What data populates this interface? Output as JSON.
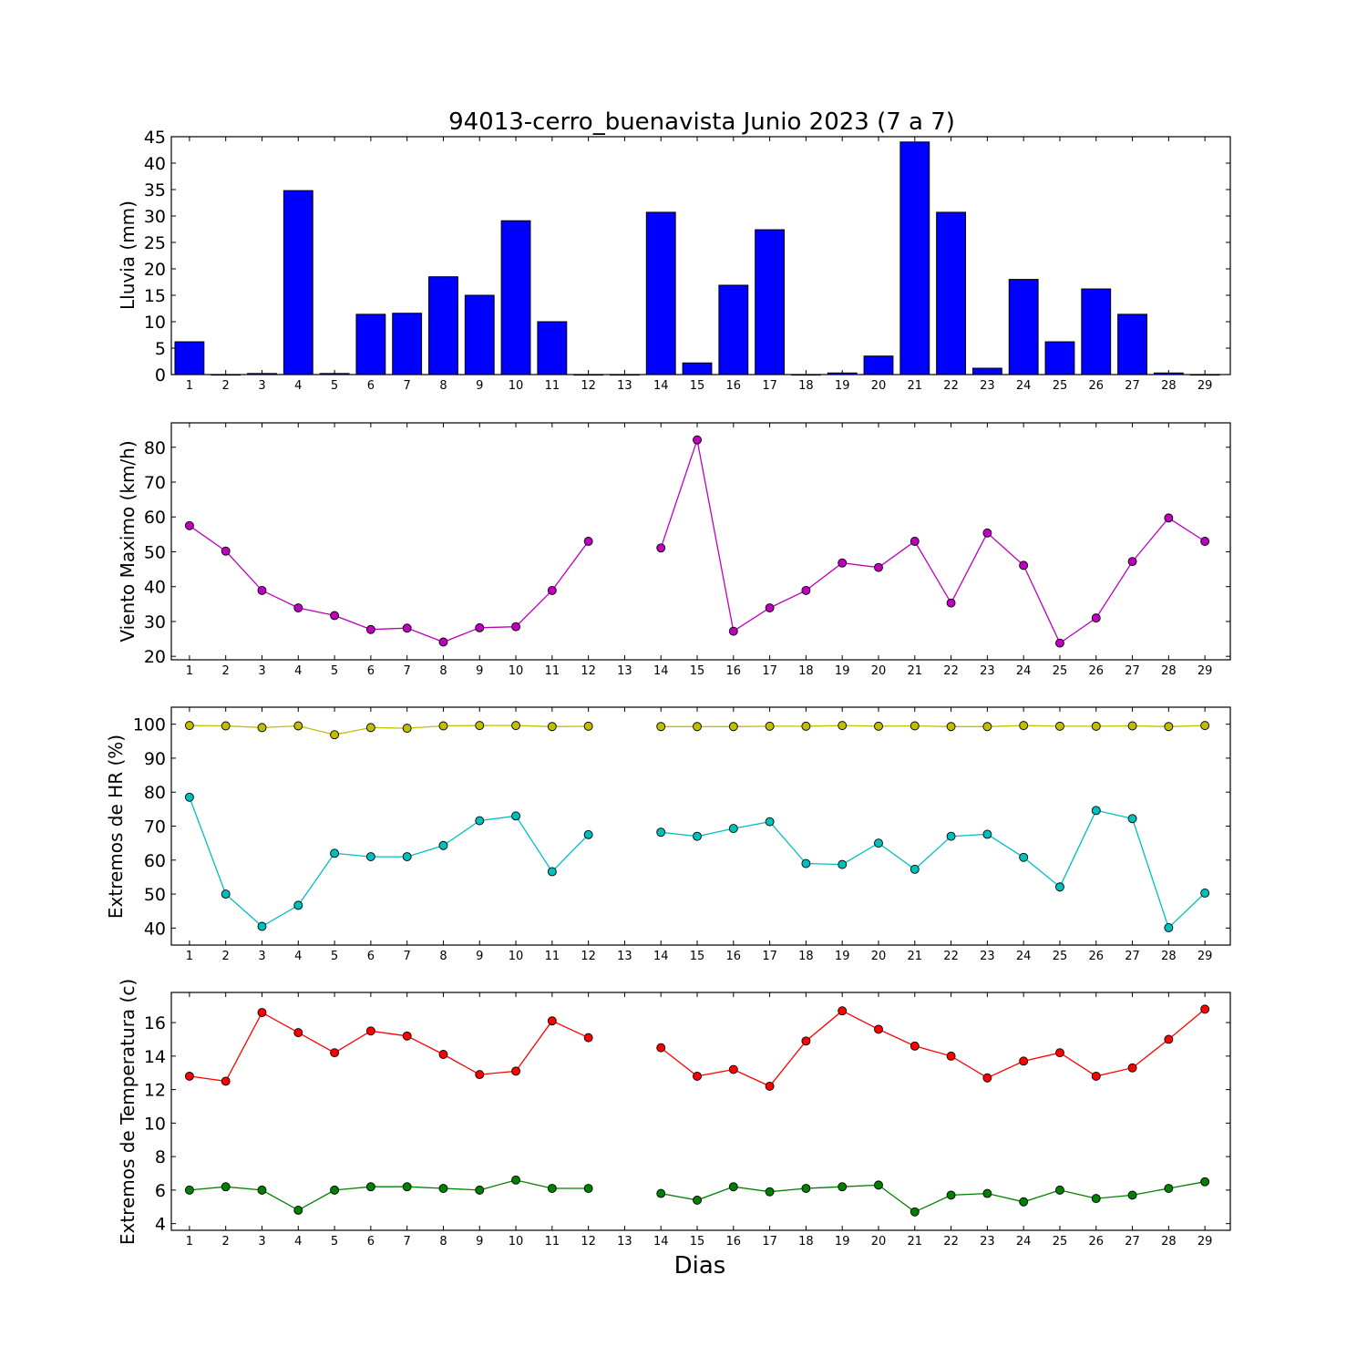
{
  "title": "94013-cerro_buenavista Junio 2023  (7 a 7)",
  "xlabel": "Dias",
  "colors": {
    "lluvia": "#0000ff",
    "viento": "#bf00bf",
    "hr_max": "#bfbf00",
    "hr_min": "#00bfbf",
    "temp_max": "#ff0000",
    "temp_min": "#008000"
  },
  "chart_data": [
    {
      "type": "bar",
      "ylabel": "Lluvia (mm)",
      "categories": [
        1,
        2,
        3,
        4,
        5,
        6,
        7,
        8,
        9,
        10,
        11,
        12,
        13,
        14,
        15,
        16,
        17,
        18,
        19,
        20,
        21,
        22,
        23,
        24,
        25,
        26,
        27,
        28,
        29
      ],
      "series": [
        {
          "values": [
            6.2,
            0,
            0.2,
            34.8,
            0.2,
            11.4,
            11.6,
            18.5,
            15.0,
            29.1,
            10.0,
            0,
            0,
            30.7,
            2.2,
            16.9,
            27.4,
            0,
            0.3,
            3.5,
            44.0,
            30.7,
            1.2,
            18.0,
            6.2,
            16.2,
            11.4,
            0.3,
            0
          ]
        }
      ],
      "ylim": [
        0,
        45
      ],
      "yticks": [
        0,
        5,
        10,
        15,
        20,
        25,
        30,
        35,
        40,
        45
      ]
    },
    {
      "type": "line",
      "ylabel": "Viento Maximo (km/h)",
      "categories": [
        1,
        2,
        3,
        4,
        5,
        6,
        7,
        8,
        9,
        10,
        11,
        12,
        13,
        14,
        15,
        16,
        17,
        18,
        19,
        20,
        21,
        22,
        23,
        24,
        25,
        26,
        27,
        28,
        29
      ],
      "series": [
        {
          "values": [
            57.5,
            50.2,
            38.9,
            33.9,
            31.7,
            27.7,
            28.1,
            24.1,
            28.2,
            28.5,
            38.9,
            53.0,
            null,
            51.1,
            82.1,
            27.2,
            33.9,
            38.9,
            46.8,
            45.5,
            53.0,
            35.3,
            55.4,
            46.1,
            23.8,
            31.0,
            47.2,
            59.7,
            53.0
          ]
        }
      ],
      "ylim": [
        19,
        87
      ],
      "yticks": [
        20,
        30,
        40,
        50,
        60,
        70,
        80
      ]
    },
    {
      "type": "line",
      "ylabel": "Extremos de HR (%)",
      "categories": [
        1,
        2,
        3,
        4,
        5,
        6,
        7,
        8,
        9,
        10,
        11,
        12,
        13,
        14,
        15,
        16,
        17,
        18,
        19,
        20,
        21,
        22,
        23,
        24,
        25,
        26,
        27,
        28,
        29
      ],
      "series": [
        {
          "values": [
            99.6,
            99.5,
            99.0,
            99.5,
            96.9,
            99.0,
            98.8,
            99.5,
            99.6,
            99.6,
            99.3,
            99.4,
            null,
            99.3,
            99.3,
            99.3,
            99.4,
            99.4,
            99.6,
            99.4,
            99.5,
            99.3,
            99.3,
            99.6,
            99.4,
            99.4,
            99.5,
            99.3,
            99.6
          ]
        },
        {
          "values": [
            78.5,
            50.0,
            40.5,
            46.7,
            62.0,
            61.0,
            61.0,
            64.3,
            71.6,
            73.0,
            56.6,
            67.5,
            null,
            68.2,
            67.0,
            69.3,
            71.3,
            59.0,
            58.7,
            65.0,
            57.3,
            67.0,
            67.6,
            60.8,
            52.1,
            74.6,
            72.2,
            40.1,
            50.3
          ]
        }
      ],
      "ylim": [
        35,
        105
      ],
      "yticks": [
        40,
        50,
        60,
        70,
        80,
        90,
        100
      ]
    },
    {
      "type": "line",
      "ylabel": "Extremos de Temperatura (c)",
      "categories": [
        1,
        2,
        3,
        4,
        5,
        6,
        7,
        8,
        9,
        10,
        11,
        12,
        13,
        14,
        15,
        16,
        17,
        18,
        19,
        20,
        21,
        22,
        23,
        24,
        25,
        26,
        27,
        28,
        29
      ],
      "series": [
        {
          "values": [
            12.8,
            12.5,
            16.6,
            15.4,
            14.2,
            15.5,
            15.2,
            14.1,
            12.9,
            13.1,
            16.1,
            15.1,
            null,
            14.5,
            12.8,
            13.2,
            12.2,
            14.9,
            16.7,
            15.6,
            14.6,
            14.0,
            12.7,
            13.7,
            14.2,
            12.8,
            13.3,
            15.0,
            16.8
          ]
        },
        {
          "values": [
            6.0,
            6.2,
            6.0,
            4.8,
            6.0,
            6.2,
            6.2,
            6.1,
            6.0,
            6.6,
            6.1,
            6.1,
            null,
            5.8,
            5.4,
            6.2,
            5.9,
            6.1,
            6.2,
            6.3,
            4.7,
            5.7,
            5.8,
            5.3,
            6.0,
            5.5,
            5.7,
            6.1,
            6.5
          ]
        }
      ],
      "ylim": [
        3.6,
        17.8
      ],
      "yticks": [
        4,
        6,
        8,
        10,
        12,
        14,
        16
      ]
    }
  ]
}
